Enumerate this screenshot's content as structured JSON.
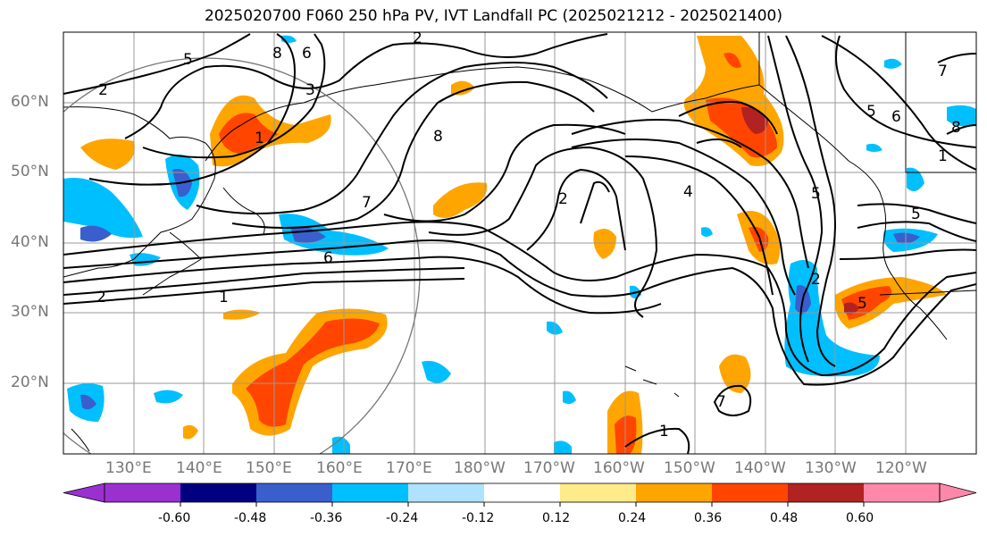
{
  "title": "2025020700 F060 250 hPa PV, IVT Landfall PC (2025021212 - 2025021400)",
  "lat_labels": [
    "60°N",
    "50°N",
    "40°N",
    "30°N",
    "20°N"
  ],
  "lon_labels": [
    "130°E",
    "140°E",
    "150°E",
    "160°E",
    "170°E",
    "180°W",
    "170°W",
    "160°W",
    "150°W",
    "140°W",
    "130°W",
    "120°W"
  ],
  "contour_labels": [
    "2",
    "5",
    "8",
    "6",
    "3",
    "1",
    "8",
    "2",
    "7",
    "6",
    "1",
    "2",
    "2",
    "4",
    "5",
    "7",
    "1",
    "5",
    "6",
    "8",
    "5",
    "2",
    "7",
    "1",
    "5"
  ],
  "colorbar": {
    "tick_labels": [
      "-0.60",
      "-0.48",
      "-0.36",
      "-0.24",
      "-0.12",
      "0.12",
      "0.24",
      "0.36",
      "0.48",
      "0.60"
    ],
    "colors": [
      "#9b30d0",
      "#000080",
      "#3a5fcd",
      "#00bfff",
      "#b0e2ff",
      "#ffffff",
      "#ffeb8a",
      "#ffa500",
      "#ff4500",
      "#b22222",
      "#ff88aa"
    ]
  },
  "fill_colors": {
    "light_yellow": "#ffeb8a",
    "orange": "#ffa500",
    "red_orange": "#ff4500",
    "dark_red": "#b22222",
    "light_blue": "#b0e2ff",
    "cyan": "#00bfff",
    "blue": "#3a5fcd"
  }
}
